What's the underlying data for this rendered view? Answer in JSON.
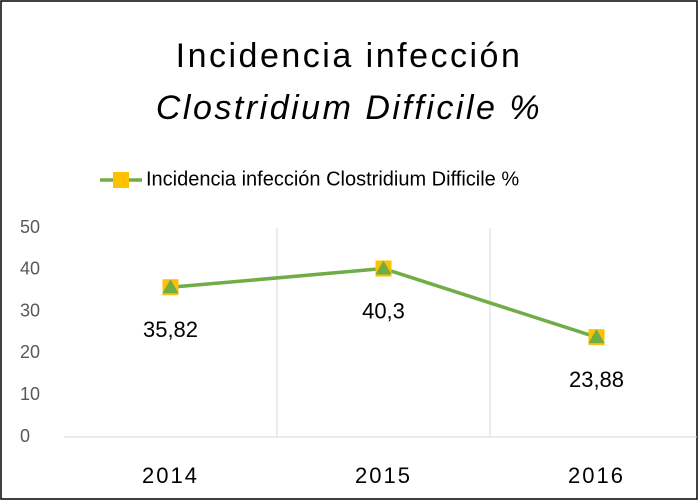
{
  "chart_data": {
    "type": "line",
    "title": "Incidencia infección",
    "subtitle": "Clostridium Difficile %",
    "categories": [
      "2014",
      "2015",
      "2016"
    ],
    "series": [
      {
        "name": "Incidencia infección Clostridium Difficile %",
        "color": "#70ad47",
        "marker_color": "#ffc000",
        "values": [
          35.82,
          40.3,
          23.88
        ],
        "value_labels": [
          "35,82",
          "40,3",
          "23,88"
        ]
      }
    ],
    "ylim": [
      0,
      50
    ],
    "yticks": [
      0,
      10,
      20,
      30,
      40,
      50
    ],
    "grid": "x",
    "legend": "top"
  }
}
